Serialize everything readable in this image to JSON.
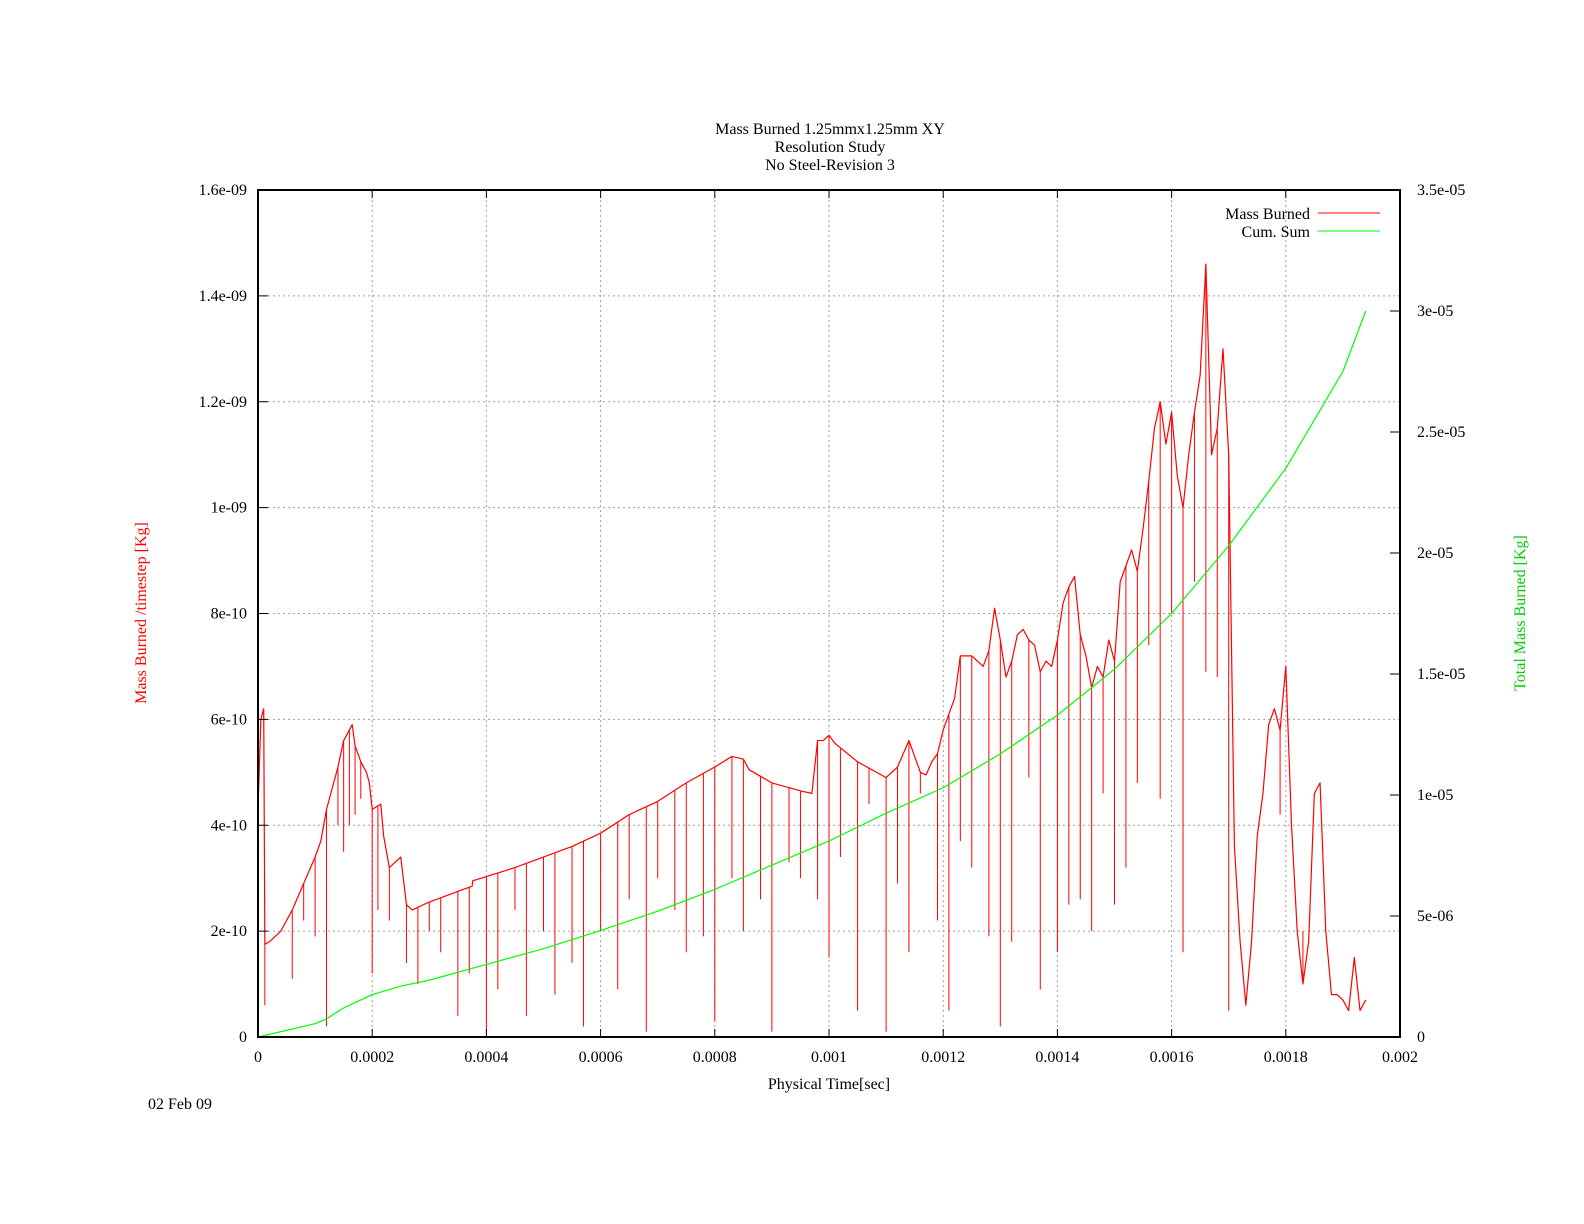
{
  "chart_data": {
    "type": "line",
    "title_lines": [
      "Mass Burned 1.25mmx1.25mm XY",
      "Resolution Study",
      "No Steel-Revision 3"
    ],
    "xlabel": "Physical Time[sec]",
    "ylabel": "Mass Burned /timestep  [Kg]",
    "y2label": "Total Mass Burned [Kg]",
    "footer": "02 Feb 09",
    "xlim": [
      0,
      0.002
    ],
    "ylim": [
      0,
      1.6e-09
    ],
    "y2lim": [
      0,
      3.5e-05
    ],
    "x_ticks": [
      "0",
      "0.0002",
      "0.0004",
      "0.0006",
      "0.0008",
      "0.001",
      "0.0012",
      "0.0014",
      "0.0016",
      "0.0018",
      "0.002"
    ],
    "y_ticks": [
      "0",
      "2e-10",
      "4e-10",
      "6e-10",
      "8e-10",
      "1e-09",
      "1.2e-09",
      "1.4e-09",
      "1.6e-09"
    ],
    "y2_ticks": [
      "0",
      "5e-06",
      "1e-05",
      "1.5e-05",
      "2e-05",
      "2.5e-05",
      "3e-05",
      "3.5e-05"
    ],
    "grid": true,
    "legend_position": "top-right",
    "colors": {
      "mass_burned": "#ff0000",
      "cum_sum": "#00ff00",
      "axis": "#000000",
      "grid": "#a0a0a0"
    },
    "series": [
      {
        "name": "Mass Burned",
        "axis": "y",
        "x": [
          0,
          5e-06,
          1e-05,
          1.2e-05,
          2e-05,
          4e-05,
          6e-05,
          8e-05,
          0.0001,
          0.00011,
          0.00012,
          0.00014,
          0.00015,
          0.000165,
          0.00017,
          0.00018,
          0.00019,
          0.000195,
          0.0002,
          0.000215,
          0.00022,
          0.00023,
          0.00025,
          0.00026,
          0.00027,
          0.0003,
          0.00035,
          0.000375,
          0.000376,
          0.00045,
          0.00055,
          0.0006,
          0.00065,
          0.0007,
          0.00075,
          0.0008,
          0.00083,
          0.00085,
          0.00086,
          0.0009,
          0.00095,
          0.00097,
          0.00098,
          0.00099,
          0.001,
          0.00101,
          0.00105,
          0.0011,
          0.00112,
          0.00114,
          0.00116,
          0.00117,
          0.00118,
          0.00119,
          0.0012,
          0.00122,
          0.00123,
          0.00125,
          0.00127,
          0.00128,
          0.00129,
          0.0013,
          0.00131,
          0.00132,
          0.00133,
          0.00134,
          0.00135,
          0.00136,
          0.00137,
          0.00138,
          0.00139,
          0.0014,
          0.00141,
          0.00142,
          0.00143,
          0.00144,
          0.00145,
          0.00146,
          0.00147,
          0.00148,
          0.00149,
          0.0015,
          0.00151,
          0.00152,
          0.00153,
          0.00154,
          0.00155,
          0.00156,
          0.00157,
          0.00158,
          0.00159,
          0.0016,
          0.00161,
          0.00162,
          0.00163,
          0.00164,
          0.00165,
          0.00166,
          0.00167,
          0.00168,
          0.00169,
          0.0017,
          0.00171,
          0.00172,
          0.00173,
          0.00174,
          0.00175,
          0.00176,
          0.00177,
          0.00178,
          0.00179,
          0.0018,
          0.00181,
          0.00182,
          0.00183,
          0.00184,
          0.00185,
          0.00186,
          0.00187,
          0.00188,
          0.00189,
          0.0019,
          0.00191,
          0.00192,
          0.00193,
          0.00194
        ],
        "values": [
          4.3e-10,
          6e-10,
          6.2e-10,
          1.75e-10,
          1.8e-10,
          2e-10,
          2.4e-10,
          2.9e-10,
          3.4e-10,
          3.7e-10,
          4.3e-10,
          5.1e-10,
          5.6e-10,
          5.9e-10,
          5.5e-10,
          5.2e-10,
          5e-10,
          4.8e-10,
          4.3e-10,
          4.4e-10,
          3.8e-10,
          3.2e-10,
          3.4e-10,
          2.5e-10,
          2.4e-10,
          2.55e-10,
          2.75e-10,
          2.85e-10,
          2.95e-10,
          3.2e-10,
          3.6e-10,
          3.85e-10,
          4.2e-10,
          4.45e-10,
          4.8e-10,
          5.1e-10,
          5.3e-10,
          5.25e-10,
          5.05e-10,
          4.8e-10,
          4.65e-10,
          4.6e-10,
          5.6e-10,
          5.6e-10,
          5.7e-10,
          5.55e-10,
          5.2e-10,
          4.9e-10,
          5.1e-10,
          5.6e-10,
          5e-10,
          4.95e-10,
          5.2e-10,
          5.35e-10,
          5.8e-10,
          6.4e-10,
          7.2e-10,
          7.2e-10,
          7e-10,
          7.3e-10,
          8.1e-10,
          7.5e-10,
          6.8e-10,
          7.1e-10,
          7.6e-10,
          7.7e-10,
          7.5e-10,
          7.4e-10,
          6.9e-10,
          7.1e-10,
          7e-10,
          7.5e-10,
          8.2e-10,
          8.5e-10,
          8.7e-10,
          7.6e-10,
          7.2e-10,
          6.6e-10,
          7e-10,
          6.8e-10,
          7.5e-10,
          7.1e-10,
          8.6e-10,
          8.9e-10,
          9.2e-10,
          8.8e-10,
          9.6e-10,
          1.05e-09,
          1.15e-09,
          1.2e-09,
          1.12e-09,
          1.18e-09,
          1.06e-09,
          1e-09,
          1.1e-09,
          1.18e-09,
          1.25e-09,
          1.46e-09,
          1.1e-09,
          1.15e-09,
          1.3e-09,
          1.1e-09,
          3.6e-10,
          1.8e-10,
          6e-11,
          1.8e-10,
          3.8e-10,
          4.6e-10,
          5.9e-10,
          6.2e-10,
          5.8e-10,
          7e-10,
          4e-10,
          2e-10,
          1e-10,
          1.8e-10,
          4.6e-10,
          4.8e-10,
          2e-10,
          8e-11,
          8e-11,
          7e-11,
          5e-11,
          1.5e-10,
          5e-11,
          7e-11
        ],
        "drops_x": [
          1.2e-05,
          4e-05,
          6e-05,
          8e-05,
          0.0001,
          0.00012,
          0.00014,
          0.00015,
          0.00016,
          0.00017,
          0.00018,
          0.0002,
          0.00021,
          0.00023,
          0.00026,
          0.00028,
          0.0003,
          0.00032,
          0.00035,
          0.00037,
          0.0004,
          0.00042,
          0.00045,
          0.00047,
          0.0005,
          0.00052,
          0.00055,
          0.00057,
          0.0006,
          0.00063,
          0.00065,
          0.00068,
          0.0007,
          0.00073,
          0.00075,
          0.00078,
          0.0008,
          0.00083,
          0.00085,
          0.00088,
          0.0009,
          0.00093,
          0.00095,
          0.00098,
          0.001,
          0.00102,
          0.00105,
          0.00107,
          0.0011,
          0.00112,
          0.00114,
          0.00116,
          0.00119,
          0.00121,
          0.00123,
          0.00125,
          0.00128,
          0.0013,
          0.00132,
          0.00135,
          0.00137,
          0.0014,
          0.00142,
          0.00144,
          0.00146,
          0.00148,
          0.0015,
          0.00152,
          0.00154,
          0.00156,
          0.00158,
          0.0016,
          0.00162,
          0.00164,
          0.00166,
          0.00168,
          0.0017,
          0.00179,
          0.00183
        ],
        "drops_y": [
          6e-11,
          2e-10,
          1.1e-10,
          2.2e-10,
          1.9e-10,
          2e-11,
          4e-10,
          3.5e-10,
          4e-10,
          4.2e-10,
          4.5e-10,
          1.2e-10,
          2.4e-10,
          2.2e-10,
          1.4e-10,
          1e-10,
          2e-10,
          1.6e-10,
          4e-11,
          1.2e-10,
          1e-11,
          9e-11,
          2.4e-10,
          4e-11,
          2e-10,
          8e-11,
          1.4e-10,
          2e-11,
          2e-10,
          9e-11,
          2.6e-10,
          1e-11,
          3e-10,
          2.4e-10,
          1.6e-10,
          1.9e-10,
          3e-11,
          3e-10,
          2e-10,
          2.6e-10,
          1e-11,
          3.3e-10,
          3e-10,
          2.6e-10,
          1.5e-10,
          3.4e-10,
          5e-11,
          4.4e-10,
          1e-11,
          2.9e-10,
          1.6e-10,
          4.6e-10,
          2.2e-10,
          5e-11,
          3.7e-10,
          3.2e-10,
          1.9e-10,
          2e-11,
          1.8e-10,
          4.9e-10,
          9e-11,
          1.6e-10,
          2.5e-10,
          2.6e-10,
          2e-10,
          4.6e-10,
          2.5e-10,
          3.2e-10,
          4.8e-10,
          7.4e-10,
          4.5e-10,
          8e-10,
          1.6e-10,
          8.6e-10,
          6.9e-10,
          6.8e-10,
          5e-11,
          4.2e-10,
          2e-10
        ]
      },
      {
        "name": "Cum. Sum",
        "axis": "y2",
        "x": [
          0,
          0.0001,
          0.00012,
          0.00015,
          0.0002,
          0.00025,
          0.0003,
          0.0004,
          0.0005,
          0.0006,
          0.0007,
          0.0008,
          0.0009,
          0.001,
          0.0011,
          0.0012,
          0.0013,
          0.0014,
          0.0015,
          0.0016,
          0.0017,
          0.0018,
          0.0019,
          0.00194
        ],
        "values": [
          0.0,
          5.5e-07,
          7.5e-07,
          1.2e-06,
          1.75e-06,
          2.1e-06,
          2.35e-06,
          3e-06,
          3.65e-06,
          4.4e-06,
          5.2e-06,
          6.1e-06,
          7.1e-06,
          8.1e-06,
          9.25e-06,
          1.03e-05,
          1.17e-05,
          1.33e-05,
          1.52e-05,
          1.75e-05,
          2.03e-05,
          2.35e-05,
          2.75e-05,
          3e-05
        ]
      }
    ]
  }
}
